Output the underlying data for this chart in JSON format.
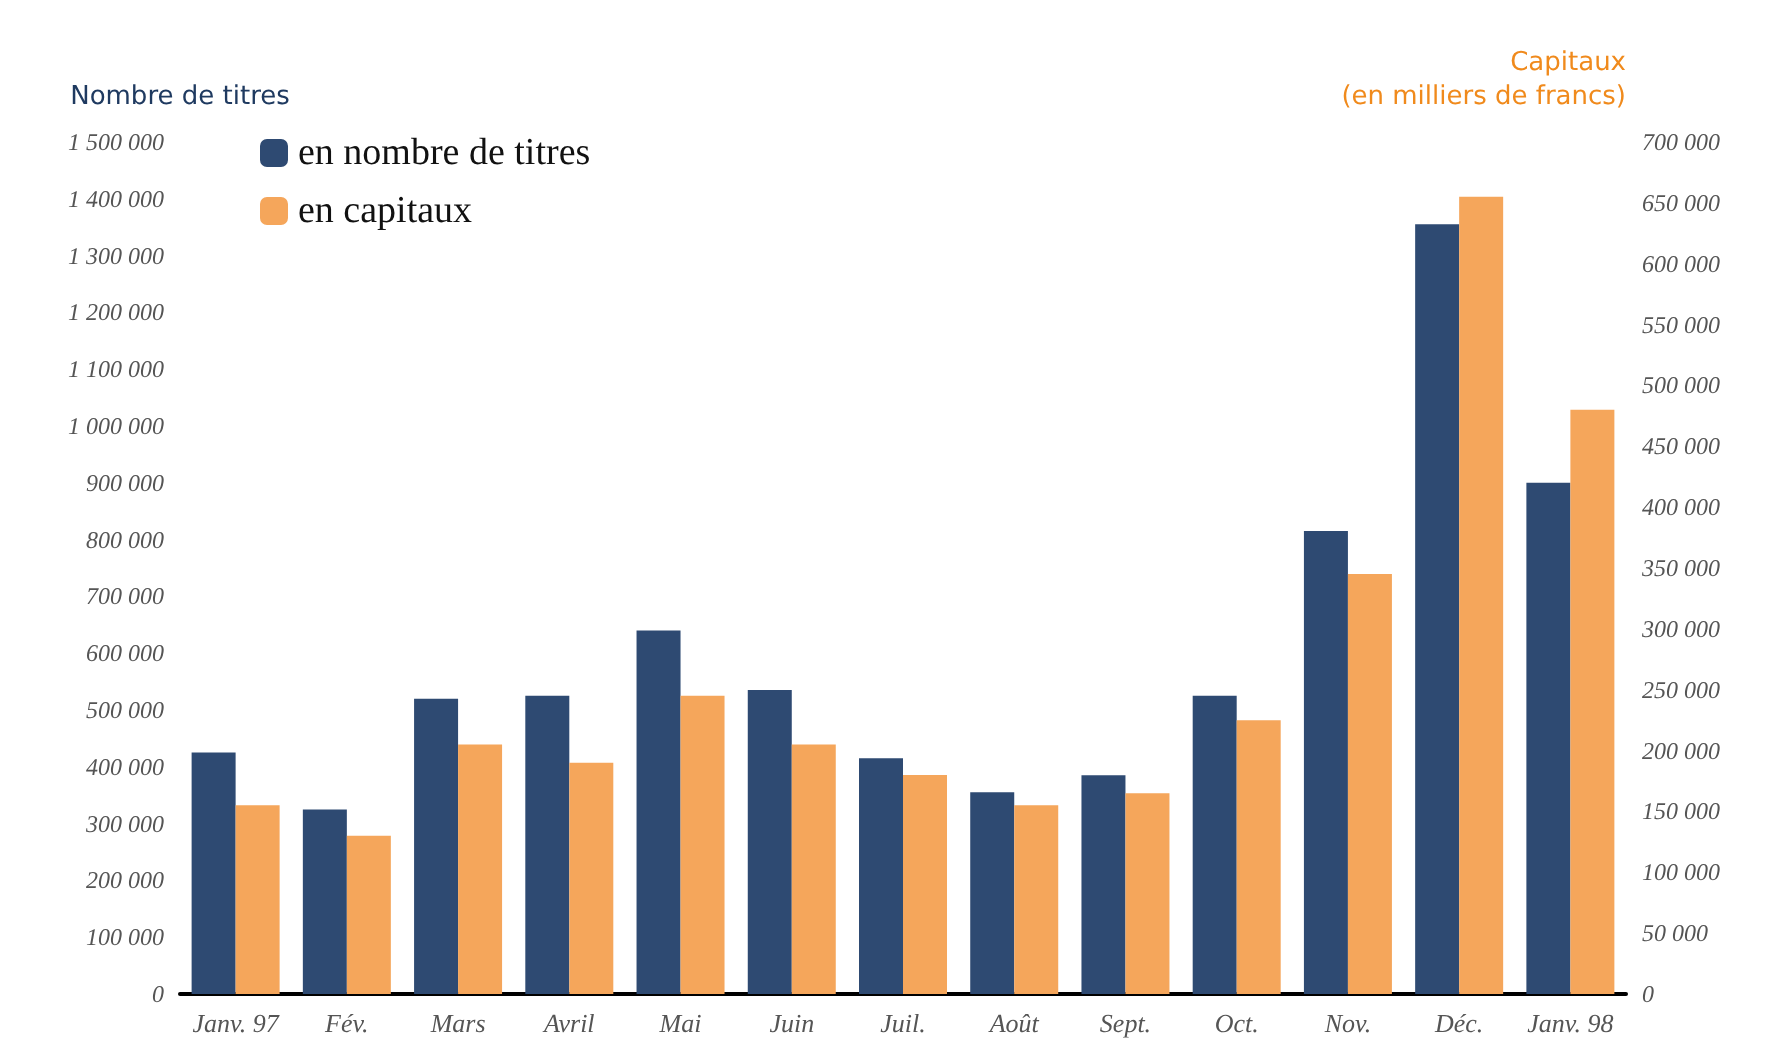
{
  "chart_data": {
    "type": "bar",
    "ylabel": "Nombre de titres",
    "y2label": "Capitaux\n(en milliers de francs)",
    "categories": [
      "Janv. 97",
      "Fév.",
      "Mars",
      "Avril",
      "Mai",
      "Juin",
      "Juil.",
      "Août",
      "Sept.",
      "Oct.",
      "Nov.",
      "Déc.",
      "Janv. 98"
    ],
    "series": [
      {
        "name": "en nombre de titres",
        "color": "#2e4a72",
        "values": [
          425000,
          325000,
          520000,
          525000,
          640000,
          535000,
          415000,
          355000,
          385000,
          525000,
          815000,
          1355000,
          900000
        ]
      },
      {
        "name": "en capitaux",
        "color": "#f5a65b",
        "axis": "y2",
        "values": [
          155000,
          130000,
          205000,
          190000,
          245000,
          205000,
          180000,
          155000,
          165000,
          225000,
          345000,
          655000,
          480000
        ]
      }
    ],
    "ylim": [
      0,
      1500000
    ],
    "yticks": [
      {
        "value": 0,
        "label": "0"
      },
      {
        "value": 100000,
        "label": "100 000"
      },
      {
        "value": 200000,
        "label": "200 000"
      },
      {
        "value": 300000,
        "label": "300 000"
      },
      {
        "value": 400000,
        "label": "400 000"
      },
      {
        "value": 500000,
        "label": "500 000"
      },
      {
        "value": 600000,
        "label": "600 000"
      },
      {
        "value": 700000,
        "label": "700 000"
      },
      {
        "value": 800000,
        "label": "800 000"
      },
      {
        "value": 900000,
        "label": "900 000"
      },
      {
        "value": 1000000,
        "label": "1 000 000"
      },
      {
        "value": 1100000,
        "label": "1 100 000"
      },
      {
        "value": 1200000,
        "label": "1 200 000"
      },
      {
        "value": 1300000,
        "label": "1 300 000"
      },
      {
        "value": 1400000,
        "label": "1 400 000"
      },
      {
        "value": 1500000,
        "label": "1 500 000"
      }
    ],
    "y2lim": [
      0,
      700000
    ],
    "y2ticks": [
      {
        "value": 0,
        "label": "0"
      },
      {
        "value": 50000,
        "label": "50 000"
      },
      {
        "value": 100000,
        "label": "100 000"
      },
      {
        "value": 150000,
        "label": "150 000"
      },
      {
        "value": 200000,
        "label": "200 000"
      },
      {
        "value": 250000,
        "label": "250 000"
      },
      {
        "value": 300000,
        "label": "300 000"
      },
      {
        "value": 350000,
        "label": "350 000"
      },
      {
        "value": 400000,
        "label": "400 000"
      },
      {
        "value": 450000,
        "label": "450 000"
      },
      {
        "value": 500000,
        "label": "500 000"
      },
      {
        "value": 550000,
        "label": "550 000"
      },
      {
        "value": 600000,
        "label": "600 000"
      },
      {
        "value": 650000,
        "label": "650 000"
      },
      {
        "value": 700000,
        "label": "700 000"
      }
    ],
    "grid": false,
    "legend": "top left"
  }
}
